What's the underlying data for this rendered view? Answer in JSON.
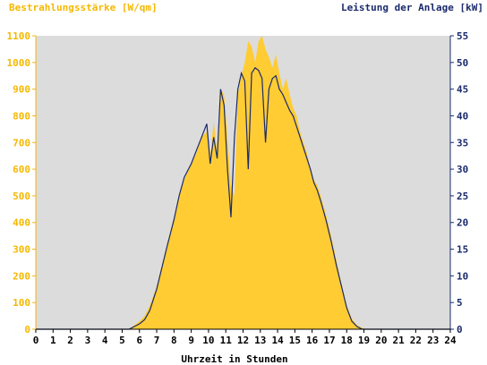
{
  "chart_data": {
    "type": "area",
    "title": "",
    "left_axis_label": "Bestrahlungsstärke [W/qm]",
    "right_axis_label": "Leistung der Anlage [kW]",
    "xlabel": "Uhrzeit in Stunden",
    "x_ticks": [
      "0",
      "1",
      "2",
      "3",
      "4",
      "5",
      "6",
      "7",
      "8",
      "9",
      "10",
      "11",
      "12",
      "13",
      "14",
      "15",
      "16",
      "17",
      "18",
      "19",
      "20",
      "21",
      "22",
      "23",
      "24"
    ],
    "y_left_ticks": [
      "0",
      "100",
      "200",
      "300",
      "400",
      "500",
      "600",
      "700",
      "800",
      "900",
      "1000",
      "1100"
    ],
    "y_right_ticks": [
      "0",
      "5",
      "10",
      "15",
      "20",
      "25",
      "30",
      "35",
      "40",
      "45",
      "50",
      "55"
    ],
    "xlim": [
      0,
      24
    ],
    "ylim_left": [
      0,
      1100
    ],
    "ylim_right": [
      0,
      55
    ],
    "grid": false,
    "colors": {
      "plot_background": "#dcdcdc",
      "irradiance_fill": "#ffcc33",
      "power_line": "#1a2a6c",
      "left_axis": "#f5b800",
      "right_axis": "#1a2a6c"
    },
    "series": [
      {
        "name": "Bestrahlungsstärke [W/qm]",
        "axis": "left",
        "style": "area",
        "x": [
          5.4,
          5.7,
          6.0,
          6.3,
          6.6,
          7.0,
          7.3,
          7.6,
          8.0,
          8.3,
          8.6,
          9.0,
          9.3,
          9.6,
          9.9,
          10.1,
          10.3,
          10.5,
          10.7,
          10.9,
          11.1,
          11.3,
          11.5,
          11.7,
          11.9,
          12.1,
          12.3,
          12.5,
          12.7,
          12.9,
          13.1,
          13.3,
          13.5,
          13.7,
          13.9,
          14.1,
          14.3,
          14.5,
          14.7,
          14.9,
          15.1,
          15.3,
          15.5,
          15.7,
          15.9,
          16.1,
          16.3,
          16.5,
          16.8,
          17.1,
          17.4,
          17.7,
          18.0,
          18.3,
          18.6,
          18.9,
          19.2,
          19.5
        ],
        "y": [
          0,
          15,
          30,
          50,
          90,
          160,
          240,
          320,
          420,
          500,
          560,
          620,
          660,
          720,
          740,
          640,
          780,
          660,
          900,
          880,
          720,
          540,
          500,
          880,
          950,
          1000,
          1080,
          1060,
          1000,
          1080,
          1100,
          1050,
          1020,
          980,
          1030,
          960,
          900,
          940,
          880,
          830,
          800,
          740,
          700,
          660,
          600,
          560,
          540,
          500,
          430,
          350,
          260,
          170,
          90,
          40,
          15,
          5,
          0,
          0
        ]
      },
      {
        "name": "Leistung der Anlage [kW]",
        "axis": "right",
        "style": "line",
        "x": [
          5.4,
          5.7,
          6.0,
          6.3,
          6.6,
          7.0,
          7.3,
          7.6,
          8.0,
          8.3,
          8.6,
          9.0,
          9.3,
          9.6,
          9.9,
          10.1,
          10.3,
          10.5,
          10.7,
          10.9,
          11.1,
          11.3,
          11.5,
          11.7,
          11.9,
          12.1,
          12.3,
          12.5,
          12.7,
          12.9,
          13.1,
          13.3,
          13.5,
          13.7,
          13.9,
          14.1,
          14.3,
          14.5,
          14.7,
          14.9,
          15.1,
          15.3,
          15.5,
          15.7,
          15.9,
          16.1,
          16.3,
          16.5,
          16.8,
          17.1,
          17.4,
          17.7,
          18.0,
          18.3,
          18.6,
          18.9,
          19.2,
          19.5
        ],
        "y": [
          0,
          0.5,
          1.0,
          1.8,
          3.5,
          7.5,
          11.5,
          15.5,
          20.5,
          25.0,
          28.5,
          31.0,
          33.5,
          36.0,
          38.5,
          31.0,
          36.0,
          32.0,
          45.0,
          42.0,
          30.0,
          21.0,
          36.0,
          45.0,
          48.0,
          46.5,
          30.0,
          48.0,
          49.0,
          48.5,
          47.0,
          35.0,
          45.0,
          47.0,
          47.5,
          45.0,
          44.0,
          42.5,
          41.0,
          40.0,
          38.0,
          36.0,
          34.0,
          32.0,
          30.0,
          27.5,
          26.0,
          24.0,
          20.5,
          16.5,
          12.0,
          8.0,
          4.0,
          1.5,
          0.5,
          0,
          0,
          0
        ]
      }
    ]
  }
}
